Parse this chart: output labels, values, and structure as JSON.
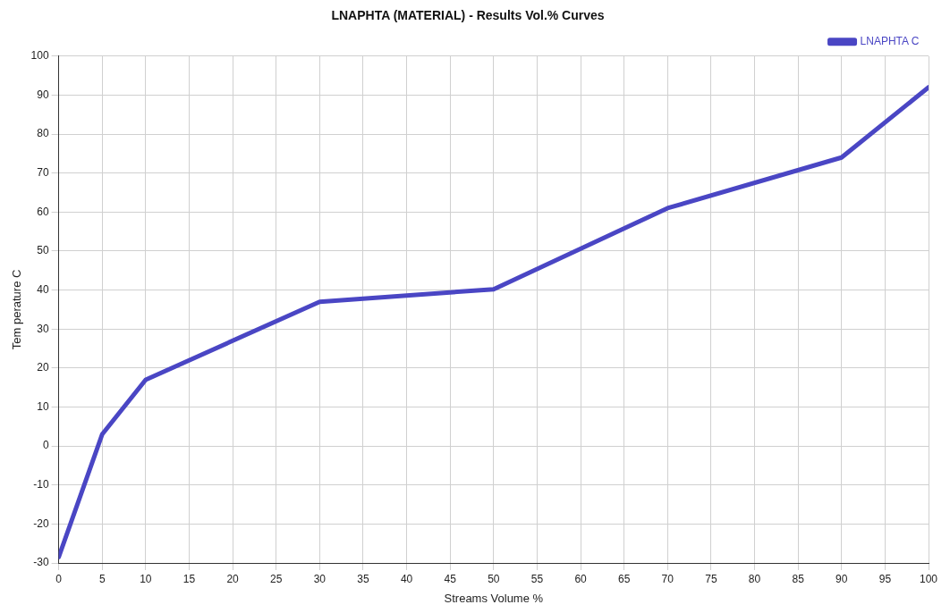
{
  "chart_data": {
    "type": "line",
    "title": "LNAPHTA (MATERIAL) - Results Vol.% Curves",
    "xlabel": "Streams Volume %",
    "ylabel": "Tem perature C",
    "x": [
      0,
      5,
      10,
      30,
      50,
      70,
      90,
      100
    ],
    "series": [
      {
        "name": "LNAPHTA C",
        "color": "#4a46c4",
        "values": [
          -28.5,
          3,
          17,
          37,
          40.2,
          61,
          74,
          92
        ]
      }
    ],
    "xlim": [
      0,
      100
    ],
    "xticks": [
      0,
      5,
      10,
      15,
      20,
      25,
      30,
      35,
      40,
      45,
      50,
      55,
      60,
      65,
      70,
      75,
      80,
      85,
      90,
      95,
      100
    ],
    "ylim": [
      -30,
      100
    ],
    "yticks": [
      -30,
      -20,
      -10,
      0,
      10,
      20,
      30,
      40,
      50,
      60,
      70,
      80,
      90,
      100
    ],
    "grid": true,
    "legend": "top right",
    "marker": "none",
    "line_style": "solid"
  }
}
